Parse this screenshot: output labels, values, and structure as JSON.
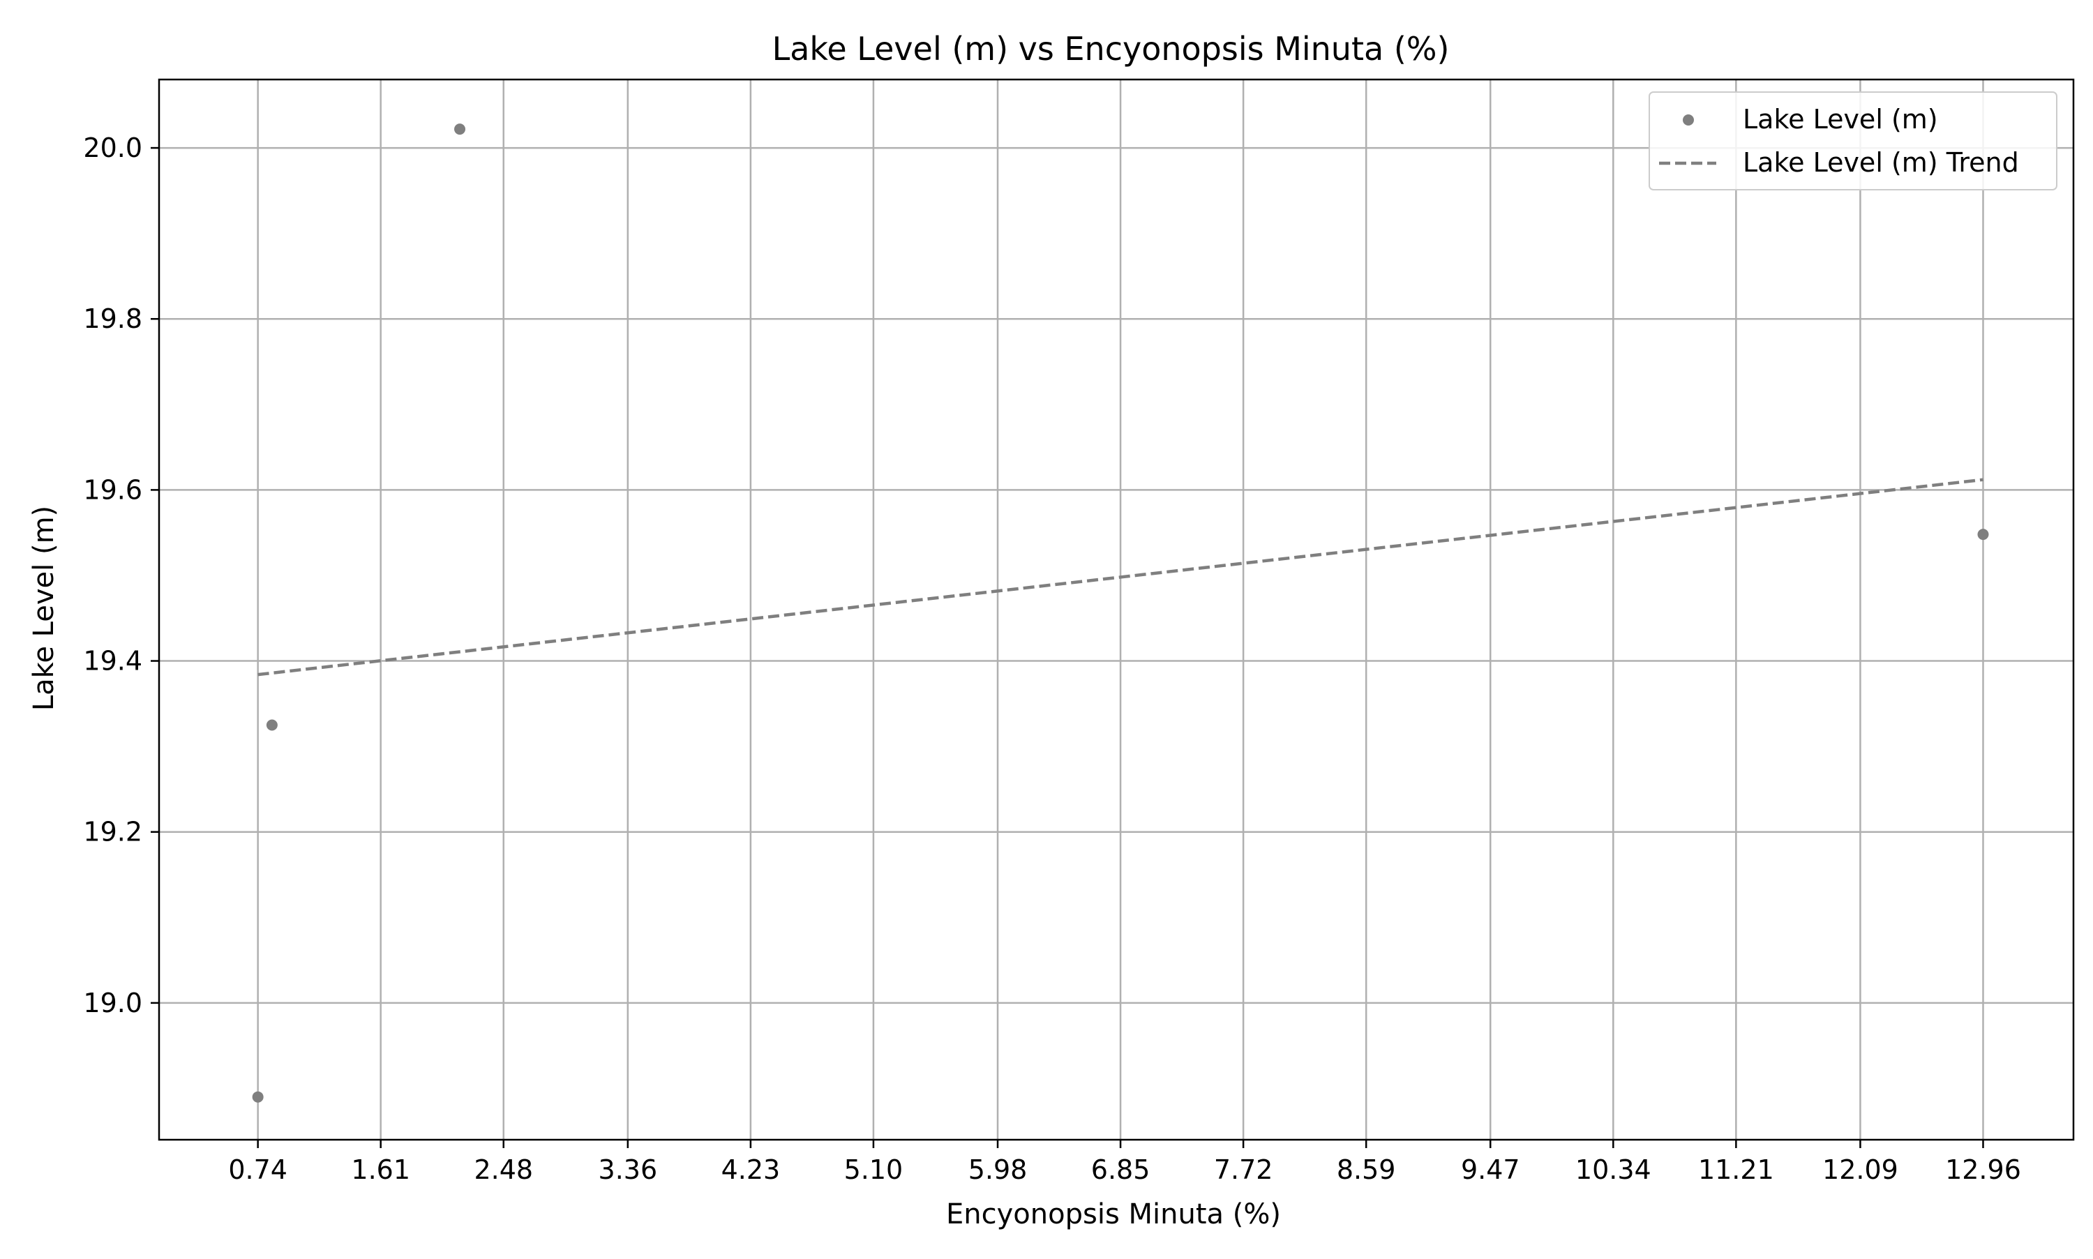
{
  "chart_data": {
    "type": "scatter",
    "title": "Lake Level (m) vs Encyonopsis Minuta (%)",
    "xlabel": "Encyonopsis Minuta (%)",
    "ylabel": "Lake Level (m)",
    "xlim": [
      0.04,
      13.6
    ],
    "ylim": [
      18.84,
      20.08
    ],
    "x_ticks": [
      "0.74",
      "1.61",
      "2.48",
      "3.36",
      "4.23",
      "5.10",
      "5.98",
      "6.85",
      "7.72",
      "8.59",
      "9.47",
      "10.34",
      "11.21",
      "12.09",
      "12.96"
    ],
    "x_tick_values": [
      0.74,
      1.61,
      2.48,
      3.36,
      4.23,
      5.1,
      5.98,
      6.85,
      7.72,
      8.59,
      9.47,
      10.34,
      11.21,
      12.09,
      12.96
    ],
    "y_ticks": [
      "19.0",
      "19.2",
      "19.4",
      "19.6",
      "19.8",
      "20.0"
    ],
    "y_tick_values": [
      19.0,
      19.2,
      19.4,
      19.6,
      19.8,
      20.0
    ],
    "grid": true,
    "legend_position": "top-right",
    "series": [
      {
        "name": "Lake Level (m)",
        "kind": "scatter",
        "color": "#7f7f7f",
        "x": [
          0.74,
          0.84,
          2.17,
          12.96
        ],
        "y": [
          18.89,
          19.325,
          20.022,
          19.548
        ]
      },
      {
        "name": "Lake Level (m) Trend",
        "kind": "line",
        "style": "dashed",
        "color": "#7f7f7f",
        "x": [
          0.74,
          12.96
        ],
        "y": [
          19.384,
          19.612
        ]
      }
    ]
  }
}
